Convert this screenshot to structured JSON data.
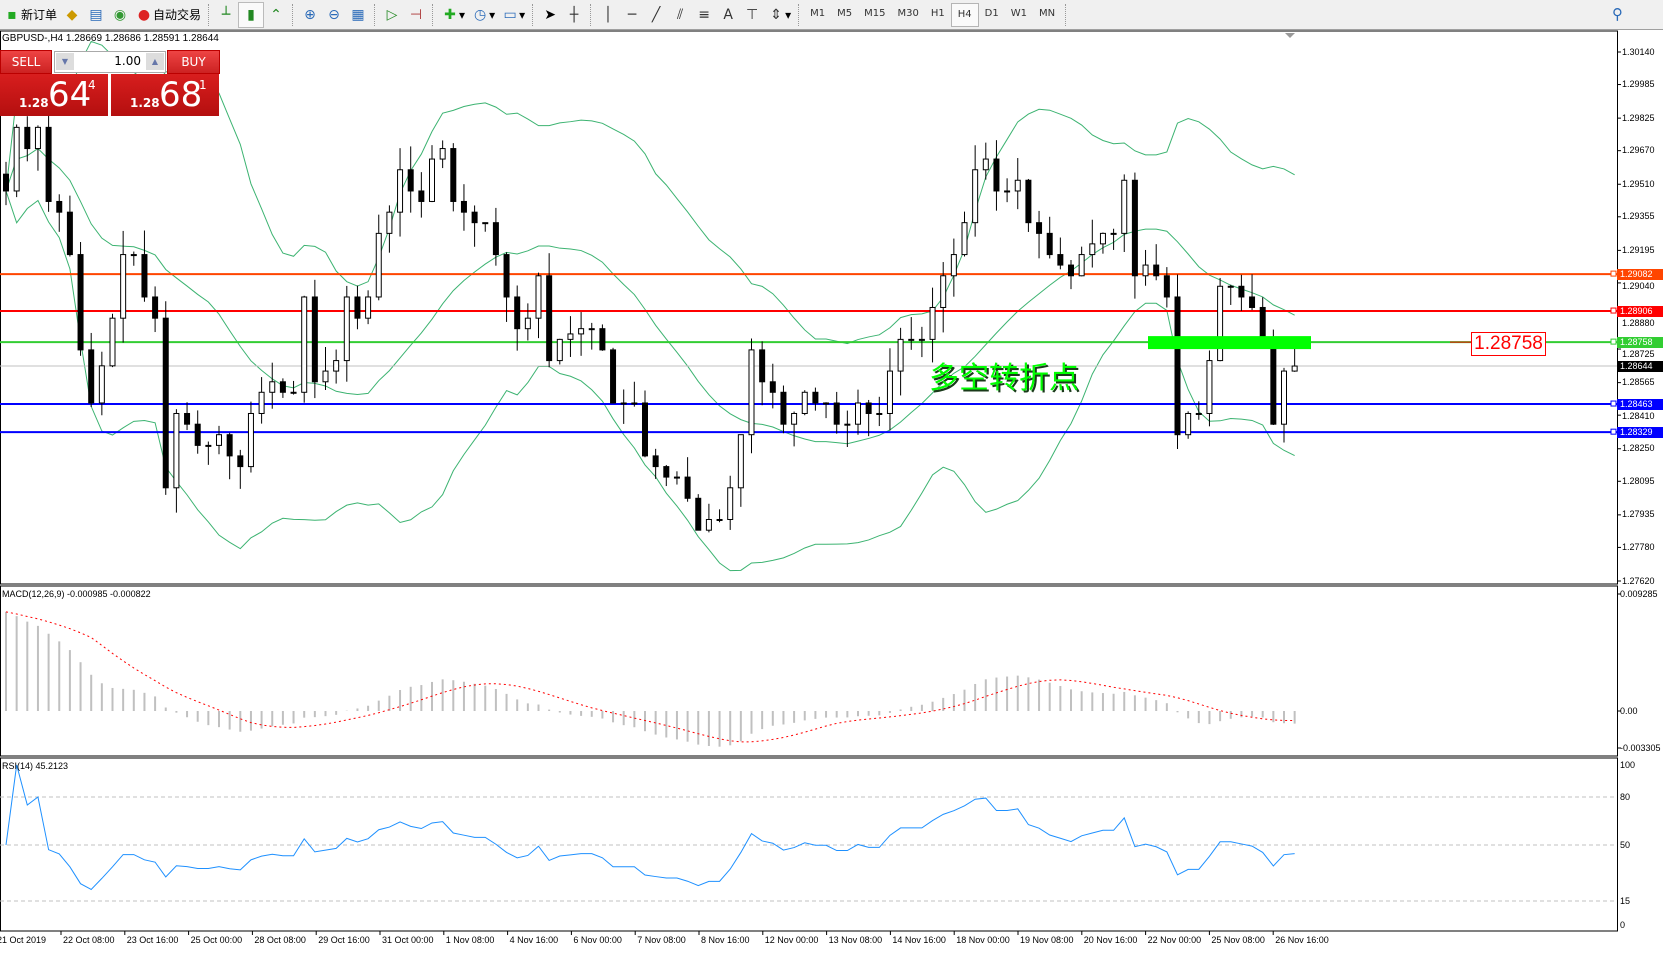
{
  "toolbar": {
    "new_order": "新订单",
    "auto_trading": "自动交易",
    "timeframes": [
      "M1",
      "M5",
      "M15",
      "M30",
      "H1",
      "H4",
      "D1",
      "W1",
      "MN"
    ],
    "active_timeframe": "H4",
    "drawing_text_tool": "A"
  },
  "chart": {
    "symbol_info": "GBPUSD-,H4  1.28669 1.28686 1.28591 1.28644",
    "annotation": "多空转折点",
    "level_label": "1.28758",
    "price_axis": [
      "1.30140",
      "1.29985",
      "1.29825",
      "1.29670",
      "1.29510",
      "1.29355",
      "1.29195",
      "1.29040",
      "1.28880",
      "1.28725",
      "1.28565",
      "1.28410",
      "1.28250",
      "1.28095",
      "1.27935",
      "1.27780",
      "1.27620"
    ],
    "price_range": [
      1.2762,
      1.3014
    ],
    "levels": [
      {
        "price": "1.29082",
        "color": "#ff4500"
      },
      {
        "price": "1.28906",
        "color": "#ff0000"
      },
      {
        "price": "1.28758",
        "color": "#32cd32"
      },
      {
        "price": "1.28644",
        "color": "#000000",
        "current": true
      },
      {
        "price": "1.28463",
        "color": "#0000ff"
      },
      {
        "price": "1.28329",
        "color": "#0000ff"
      }
    ],
    "band_color": "#3cb371",
    "zone_color": "#00ff00"
  },
  "one_click": {
    "sell": "SELL",
    "buy": "BUY",
    "lot": "1.00",
    "sell_prefix": "1.28",
    "sell_big": "64",
    "sell_sup": "4",
    "buy_prefix": "1.28",
    "buy_big": "68",
    "buy_sup": "1"
  },
  "macd": {
    "label": "MACD(12,26,9) -0.000985 -0.000822",
    "axis": [
      "0.009285",
      "0.00",
      "-0.003305"
    ],
    "signal_color": "#ff0000"
  },
  "rsi": {
    "label": "RSI(14) 45.2123",
    "axis": [
      "100",
      "80",
      "50",
      "15",
      "0"
    ],
    "color": "#1e90ff"
  },
  "time_axis": [
    "21 Oct 2019",
    "22 Oct 08:00",
    "23 Oct 16:00",
    "25 Oct 00:00",
    "28 Oct 08:00",
    "29 Oct 16:00",
    "31 Oct 00:00",
    "1 Nov 08:00",
    "4 Nov 16:00",
    "6 Nov 00:00",
    "7 Nov 08:00",
    "8 Nov 16:00",
    "12 Nov 00:00",
    "13 Nov 08:00",
    "14 Nov 16:00",
    "18 Nov 00:00",
    "19 Nov 08:00",
    "20 Nov 16:00",
    "22 Nov 00:00",
    "25 Nov 08:00",
    "26 Nov 16:00"
  ],
  "chart_data": {
    "type": "candlestick",
    "closes": [
      1.29478,
      1.29781,
      1.2968,
      1.29781,
      1.29428,
      1.29377,
      1.29175,
      1.28721,
      1.28468,
      1.28645,
      1.28872,
      1.29175,
      1.29175,
      1.28973,
      1.28872,
      1.28064,
      1.28418,
      1.28367,
      1.28266,
      1.28266,
      1.28317,
      1.28216,
      1.28165,
      1.28418,
      1.28519,
      1.28569,
      1.28519,
      1.28519,
      1.28973,
      1.28569,
      1.2862,
      1.2867,
      1.28973,
      1.28872,
      1.28973,
      1.29276,
      1.29377,
      1.29579,
      1.29478,
      1.29428,
      1.2963,
      1.2968,
      1.29428,
      1.29377,
      1.29327,
      1.29327,
      1.29175,
      1.28973,
      1.28822,
      1.28872,
      1.29074,
      1.2867,
      1.28771,
      1.28797,
      1.28822,
      1.28822,
      1.28721,
      1.28468,
      1.28468,
      1.28468,
      1.28216,
      1.28165,
      1.28115,
      1.28115,
      1.28014,
      1.27862,
      1.27913,
      1.27913,
      1.28064,
      1.28317,
      1.28721,
      1.28569,
      1.28519,
      1.28367,
      1.28418,
      1.28519,
      1.28468,
      1.28468,
      1.28367,
      1.28367,
      1.28468,
      1.28418,
      1.28418,
      1.2862,
      1.28771,
      1.28771,
      1.28771,
      1.28923,
      1.29074,
      1.29175,
      1.29327,
      1.29579,
      1.2963,
      1.29478,
      1.29478,
      1.29529,
      1.29327,
      1.29276,
      1.29175,
      1.29125,
      1.29074,
      1.29175,
      1.29226,
      1.29276,
      1.29276,
      1.29529,
      1.29074,
      1.29125,
      1.29074,
      1.28973,
      1.28317,
      1.28418,
      1.28418,
      1.2867,
      1.29024,
      1.29024,
      1.28973,
      1.28923,
      1.28771,
      1.28367,
      1.2862,
      1.28644
    ]
  }
}
